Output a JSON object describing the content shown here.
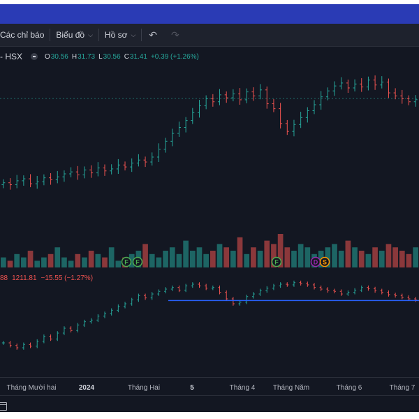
{
  "toolbar": {
    "indicators_label": "Các chỉ báo",
    "chart_label": "Biểu đồ",
    "profile_label": "Hồ sơ"
  },
  "legend": {
    "symbol": "- HSX",
    "o_label": "O",
    "o_value": "30.56",
    "h_label": "H",
    "h_value": "31.73",
    "l_label": "L",
    "l_value": "30.56",
    "c_label": "C",
    "c_value": "31.41",
    "change": "+0.39 (+1.26%)"
  },
  "indicator_legend": {
    "prefix": "88",
    "value": "1211.81",
    "change": "−15.55 (−1.27%)"
  },
  "x_axis_labels": [
    "Tháng Mười hai",
    "2024",
    "Tháng Hai",
    "5",
    "Tháng 4",
    "Tháng Năm",
    "Tháng 6",
    "Tháng 7"
  ],
  "event_markers": [
    {
      "letter": "F",
      "color": "#4caf50"
    },
    {
      "letter": "F",
      "color": "#4caf50"
    },
    {
      "letter": "F",
      "color": "#4caf50"
    },
    {
      "letter": "D",
      "color": "#9c27b0"
    },
    {
      "letter": "S",
      "color": "#ff9800"
    }
  ],
  "colors": {
    "up": "#26a69a",
    "down": "#ef5350",
    "background": "#131722",
    "support_line": "#2962ff",
    "reference_line": "#26a69a"
  },
  "chart_data": {
    "type": "candlestick",
    "ticker": "HSX",
    "last": {
      "open": 30.56,
      "high": 31.73,
      "low": 30.56,
      "close": 31.41,
      "change": 0.39,
      "change_pct": 1.26
    },
    "close_series_approx": [
      23.0,
      22.8,
      23.2,
      23.4,
      22.9,
      23.1,
      23.5,
      23.3,
      23.6,
      23.9,
      24.1,
      23.8,
      24.3,
      24.0,
      24.5,
      24.2,
      24.4,
      24.8,
      24.6,
      25.0,
      25.3,
      25.1,
      25.6,
      26.4,
      27.2,
      28.0,
      28.6,
      29.3,
      30.1,
      30.8,
      31.5,
      31.2,
      31.9,
      31.6,
      32.0,
      31.4,
      32.2,
      31.8,
      32.4,
      31.0,
      30.5,
      29.0,
      28.2,
      28.9,
      29.6,
      30.3,
      30.9,
      31.7,
      32.3,
      32.8,
      33.1,
      32.6,
      33.0,
      32.7,
      33.4,
      32.9,
      33.2,
      32.1,
      31.8,
      31.5,
      31.2,
      31.41
    ],
    "indicator_series": {
      "name": "",
      "last": 1211.81,
      "change": -15.55,
      "change_pct": -1.27,
      "values_approx": [
        1080,
        1072,
        1065,
        1075,
        1070,
        1085,
        1100,
        1092,
        1110,
        1125,
        1118,
        1135,
        1145,
        1150,
        1162,
        1170,
        1180,
        1192,
        1200,
        1212,
        1225,
        1218,
        1230,
        1238,
        1245,
        1250,
        1242,
        1255,
        1260,
        1255,
        1248,
        1250,
        1235,
        1215,
        1200,
        1205,
        1222,
        1230,
        1240,
        1248,
        1255,
        1260,
        1258,
        1265,
        1262,
        1258,
        1250,
        1245,
        1240,
        1238,
        1230,
        1235,
        1242,
        1250,
        1246,
        1240,
        1235,
        1228,
        1225,
        1220,
        1215,
        1211.81
      ]
    },
    "support_level": 1210,
    "volume_approx": [
      3,
      2,
      4,
      3,
      5,
      2,
      3,
      4,
      6,
      3,
      2,
      4,
      3,
      5,
      4,
      3,
      6,
      2,
      3,
      4,
      5,
      7,
      4,
      3,
      5,
      6,
      4,
      8,
      5,
      6,
      4,
      5,
      7,
      6,
      5,
      9,
      4,
      6,
      5,
      8,
      7,
      10,
      6,
      5,
      7,
      6,
      4,
      5,
      6,
      7,
      5,
      8,
      6,
      5,
      4,
      6,
      5,
      7,
      6,
      5,
      4,
      6
    ],
    "x_labels": [
      "Tháng Mười hai",
      "2024",
      "Tháng Hai",
      "5",
      "Tháng 4",
      "Tháng Năm",
      "Tháng 6",
      "Tháng 7"
    ]
  }
}
